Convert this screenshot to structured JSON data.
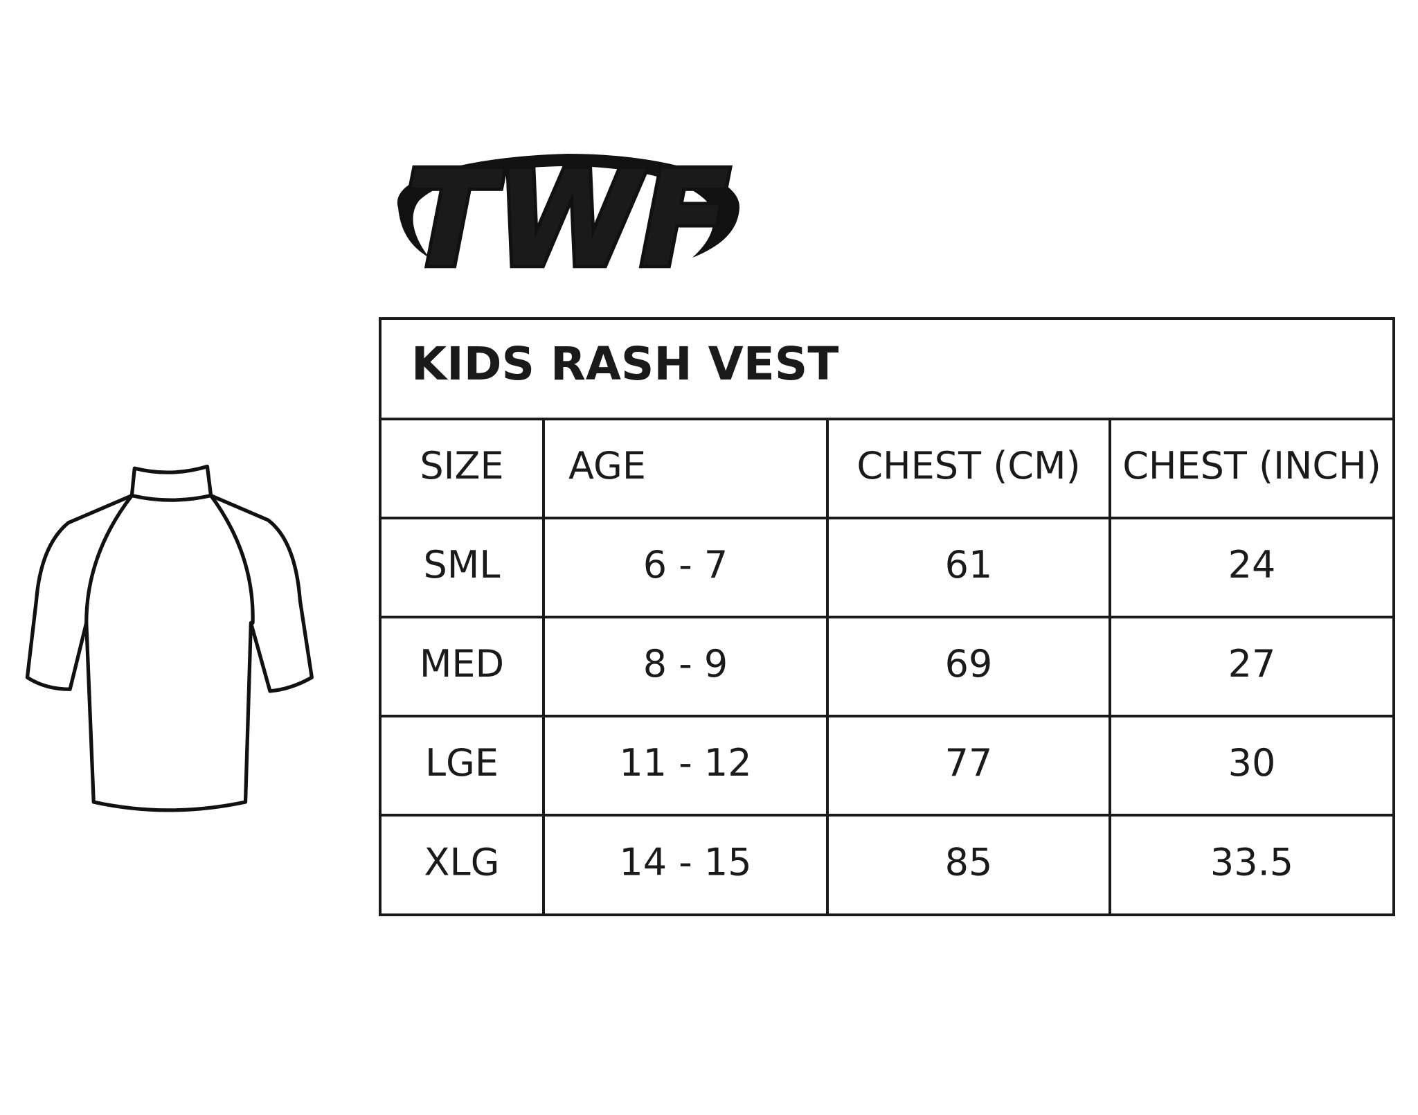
{
  "logo": {
    "text": "TWF"
  },
  "table": {
    "title": "KIDS RASH VEST",
    "header": [
      "SIZE",
      "AGE",
      "CHEST (CM)",
      "CHEST (INCH)"
    ],
    "rows": [
      [
        "SML",
        "6 - 7",
        "61",
        "24"
      ],
      [
        "MED",
        "8 - 9",
        "69",
        "27"
      ],
      [
        "LGE",
        "11 - 12",
        "77",
        "30"
      ],
      [
        "XLG",
        "14 - 15",
        "85",
        "33.5"
      ]
    ]
  }
}
